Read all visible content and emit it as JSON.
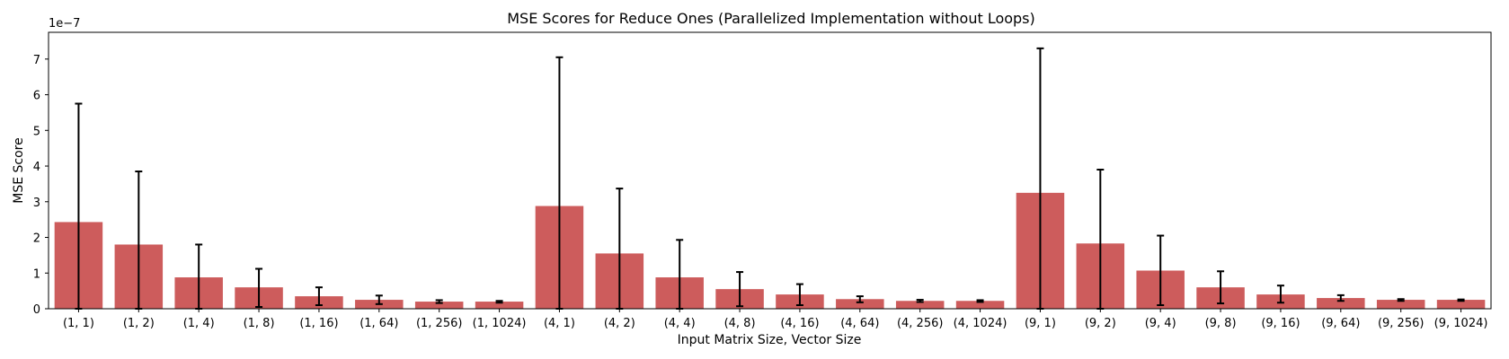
{
  "chart_data": {
    "type": "bar",
    "title": "MSE Scores for Reduce Ones (Parallelized Implementation without Loops)",
    "xlabel": "Input Matrix Size, Vector Size",
    "ylabel": "MSE Score",
    "y_offset_text": "1e−7",
    "y_unit_scale": 1e-07,
    "ylim": [
      0,
      7.75
    ],
    "yticks": [
      0,
      1,
      2,
      3,
      4,
      5,
      6,
      7
    ],
    "bar_color": "#cd5c5c",
    "error_color": "#000000",
    "grid": false,
    "categories": [
      "(1, 1)",
      "(1, 2)",
      "(1, 4)",
      "(1, 8)",
      "(1, 16)",
      "(1, 64)",
      "(1, 256)",
      "(1, 1024)",
      "(4, 1)",
      "(4, 2)",
      "(4, 4)",
      "(4, 8)",
      "(4, 16)",
      "(4, 64)",
      "(4, 256)",
      "(4, 1024)",
      "(9, 1)",
      "(9, 2)",
      "(9, 4)",
      "(9, 8)",
      "(9, 16)",
      "(9, 64)",
      "(9, 256)",
      "(9, 1024)"
    ],
    "values": [
      2.43,
      1.8,
      0.88,
      0.6,
      0.35,
      0.25,
      0.2,
      0.2,
      2.88,
      1.55,
      0.88,
      0.55,
      0.4,
      0.27,
      0.22,
      0.22,
      3.25,
      1.83,
      1.07,
      0.6,
      0.4,
      0.3,
      0.25,
      0.25
    ],
    "error_low": [
      0,
      0,
      0,
      0.05,
      0.1,
      0.13,
      0.16,
      0.17,
      0,
      0,
      0,
      0.07,
      0.1,
      0.18,
      0.19,
      0.19,
      0,
      0,
      0.1,
      0.15,
      0.17,
      0.22,
      0.22,
      0.22
    ],
    "error_high": [
      5.75,
      3.85,
      1.8,
      1.12,
      0.6,
      0.37,
      0.24,
      0.22,
      7.05,
      3.37,
      1.93,
      1.03,
      0.69,
      0.35,
      0.25,
      0.24,
      7.3,
      3.9,
      2.05,
      1.05,
      0.65,
      0.38,
      0.27,
      0.26
    ]
  }
}
